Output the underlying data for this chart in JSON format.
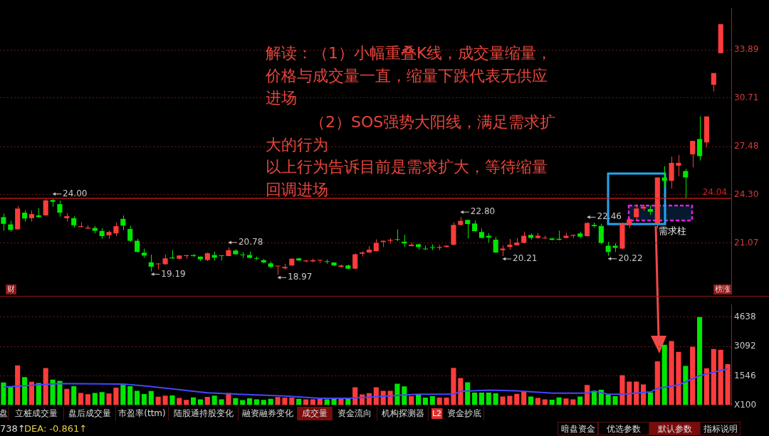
{
  "chart_data": [
    {
      "type": "candlestick",
      "tick_labels": "y",
      "grid": "y",
      "ylim": [
        18.0,
        36.68
      ],
      "yticks": [
        21.07,
        {
          "value": 24.3,
          "label": "24.30"
        },
        27.48,
        30.71,
        33.89
      ],
      "categories": [
        null,
        null,
        null,
        null,
        null,
        null,
        null,
        null,
        null,
        null,
        null,
        null,
        null,
        null,
        null,
        null,
        null,
        null,
        null,
        null,
        null,
        null,
        null,
        null,
        null,
        null,
        null,
        null,
        null,
        null,
        null,
        null,
        null,
        null,
        null,
        null,
        null,
        null,
        null,
        null,
        null,
        null,
        null,
        null,
        null,
        null,
        null,
        null,
        null,
        null,
        null,
        null,
        null,
        null,
        null,
        null,
        null,
        null,
        null,
        null,
        null,
        null,
        null,
        null,
        null,
        null,
        null,
        null,
        null,
        null,
        null,
        null,
        null,
        null,
        null,
        null,
        null,
        null,
        null,
        null,
        null,
        null,
        null,
        null,
        null,
        null,
        null,
        null,
        null,
        null,
        null,
        null,
        null,
        null,
        null,
        null,
        null,
        null,
        null,
        null,
        null,
        null,
        null,
        null
      ],
      "ohlc": [
        [
          22.8,
          23.03,
          21.9,
          22.35
        ],
        [
          22.31,
          22.55,
          21.83,
          21.95
        ],
        [
          21.98,
          23.54,
          21.98,
          23.36
        ],
        [
          23.09,
          23.25,
          22.5,
          22.7
        ],
        [
          22.73,
          23.25,
          22.5,
          23.0
        ],
        [
          22.91,
          23.4,
          22.76,
          22.79
        ],
        [
          22.91,
          23.96,
          22.88,
          23.9
        ],
        [
          23.93,
          24.0,
          23.48,
          23.81
        ],
        [
          23.66,
          23.9,
          22.83,
          23.09
        ],
        [
          22.73,
          23.06,
          22.5,
          22.85
        ],
        [
          22.73,
          22.85,
          22.1,
          22.25
        ],
        [
          22.13,
          22.45,
          22.13,
          22.19
        ],
        [
          22.04,
          22.25,
          22.01,
          22.1
        ],
        [
          22.07,
          22.2,
          21.71,
          21.89
        ],
        [
          21.87,
          22.05,
          21.35,
          21.53
        ],
        [
          21.59,
          21.9,
          21.35,
          21.8
        ],
        [
          21.71,
          22.43,
          21.53,
          22.19
        ],
        [
          22.68,
          22.91,
          21.93,
          22.23
        ],
        [
          22.01,
          22.22,
          21.14,
          21.23
        ],
        [
          21.23,
          21.35,
          20.45,
          20.48
        ],
        [
          20.43,
          20.7,
          20.1,
          20.24
        ],
        [
          19.8,
          20.3,
          19.19,
          19.5
        ],
        [
          19.67,
          19.73,
          19.31,
          19.7
        ],
        [
          19.67,
          20.3,
          19.64,
          20.06
        ],
        [
          20.12,
          20.6,
          20.03,
          20.06
        ],
        [
          20.03,
          20.24,
          19.97,
          20.24
        ],
        [
          20.21,
          20.27,
          20.03,
          20.27
        ],
        [
          20.27,
          20.36,
          20.15,
          20.21
        ],
        [
          20.18,
          20.18,
          19.88,
          20.0
        ],
        [
          19.95,
          20.45,
          19.88,
          20.4
        ],
        [
          20.28,
          20.51,
          19.91,
          20.1
        ],
        [
          20.24,
          20.24,
          19.91,
          20.21
        ],
        [
          20.21,
          20.78,
          20.2,
          20.6
        ],
        [
          20.57,
          20.66,
          20.3,
          20.33
        ],
        [
          20.3,
          20.48,
          20.06,
          20.27
        ],
        [
          20.28,
          20.51,
          20.06,
          20.09
        ],
        [
          20.06,
          20.18,
          19.94,
          20.03
        ],
        [
          19.94,
          20.03,
          19.73,
          19.79
        ],
        [
          19.73,
          19.85,
          19.4,
          19.49
        ],
        [
          19.52,
          19.55,
          18.97,
          19.55
        ],
        [
          19.4,
          19.7,
          19.31,
          19.49
        ],
        [
          19.58,
          20.06,
          19.55,
          20.03
        ],
        [
          20.06,
          20.09,
          19.88,
          19.91
        ],
        [
          19.85,
          19.94,
          19.79,
          19.91
        ],
        [
          19.85,
          20.03,
          19.79,
          19.94
        ],
        [
          19.91,
          19.94,
          19.73,
          19.94
        ],
        [
          19.85,
          19.97,
          19.7,
          19.82
        ],
        [
          19.79,
          19.79,
          19.55,
          19.58
        ],
        [
          19.49,
          19.64,
          19.43,
          19.58
        ],
        [
          19.58,
          19.64,
          19.34,
          19.37
        ],
        [
          19.37,
          20.39,
          19.34,
          20.33
        ],
        [
          20.36,
          20.54,
          20.18,
          20.45
        ],
        [
          20.45,
          20.87,
          20.42,
          20.63
        ],
        [
          20.54,
          21.32,
          20.51,
          21.08
        ],
        [
          21.14,
          21.23,
          20.81,
          21.23
        ],
        [
          21.23,
          21.38,
          21.05,
          21.29
        ],
        [
          21.32,
          21.98,
          21.2,
          21.29
        ],
        [
          21.17,
          21.62,
          20.81,
          21.05
        ],
        [
          20.87,
          21.11,
          20.84,
          20.96
        ],
        [
          20.99,
          21.05,
          20.63,
          20.81
        ],
        [
          20.69,
          20.9,
          20.63,
          20.66
        ],
        [
          20.78,
          20.99,
          20.6,
          20.75
        ],
        [
          20.75,
          20.96,
          20.6,
          20.81
        ],
        [
          20.81,
          20.93,
          20.77,
          20.9
        ],
        [
          20.96,
          22.45,
          20.93,
          22.28
        ],
        [
          22.28,
          22.8,
          22.22,
          22.55
        ],
        [
          22.61,
          22.61,
          21.38,
          22.34
        ],
        [
          22.37,
          22.58,
          21.83,
          21.86
        ],
        [
          21.8,
          22.04,
          21.38,
          21.41
        ],
        [
          21.56,
          21.74,
          21.11,
          21.44
        ],
        [
          21.3,
          21.5,
          20.42,
          20.45
        ],
        [
          20.6,
          20.93,
          20.21,
          20.7
        ],
        [
          20.81,
          21.35,
          20.63,
          20.96
        ],
        [
          20.93,
          21.41,
          20.9,
          21.11
        ],
        [
          21.08,
          21.83,
          21.05,
          21.56
        ],
        [
          21.62,
          21.71,
          21.3,
          21.41
        ],
        [
          21.41,
          21.75,
          21.35,
          21.56
        ],
        [
          21.38,
          21.56,
          21.35,
          21.41
        ],
        [
          21.38,
          21.41,
          21.26,
          21.29
        ],
        [
          21.35,
          21.9,
          21.26,
          21.29
        ],
        [
          21.41,
          21.75,
          21.38,
          21.56
        ],
        [
          21.56,
          21.62,
          21.41,
          21.62
        ],
        [
          21.71,
          21.83,
          21.41,
          21.5
        ],
        [
          21.53,
          22.46,
          21.5,
          22.4
        ],
        [
          22.28,
          22.43,
          22.1,
          22.19
        ],
        [
          22.2,
          22.35,
          21.0,
          21.08
        ],
        [
          20.9,
          21.15,
          20.22,
          20.48
        ],
        [
          20.9,
          21.08,
          20.48,
          20.75
        ],
        [
          20.7,
          22.43,
          20.66,
          22.35
        ],
        [
          22.25,
          22.73,
          22.05,
          22.65
        ],
        [
          22.8,
          23.63,
          22.58,
          23.36
        ],
        [
          23.36,
          23.63,
          23.21,
          23.48
        ],
        [
          23.33,
          23.55,
          22.95,
          23.15
        ],
        [
          22.35,
          25.43,
          22.05,
          25.43
        ],
        [
          25.43,
          26.18,
          24.75,
          25.2
        ],
        [
          25.2,
          26.81,
          24.68,
          26.4
        ],
        [
          26.21,
          26.93,
          25.5,
          26.4
        ],
        [
          25.85,
          26.0,
          24.08,
          25.43
        ],
        [
          26.96,
          27.86,
          26.1,
          27.86
        ],
        [
          27.98,
          29.48,
          26.55,
          26.84
        ],
        [
          27.75,
          29.48,
          27.45,
          29.48
        ],
        [
          31.58,
          32.36,
          31.13,
          32.36
        ],
        [
          33.68,
          35.6,
          33.68,
          35.6
        ],
        null
      ],
      "colors": [
        "#00e600",
        "#00e600",
        "#ff3c3c",
        "#00e600",
        "#ff3c3c",
        "#00e600",
        "#ff3c3c",
        "#00e600",
        "#00e600",
        "#ff3c3c",
        "#00e600",
        "#ff3c3c",
        "#ff3c3c",
        "#00e600",
        "#00e600",
        "#ff3c3c",
        "#ff3c3c",
        "#00e600",
        "#00e600",
        "#00e600",
        "#00e600",
        "#00e600",
        "#ff3c3c",
        "#ff3c3c",
        "#00e600",
        "#ff3c3c",
        "#ff3c3c",
        "#00e600",
        "#00e600",
        "#ff3c3c",
        "#00e600",
        "#00e600",
        "#ff3c3c",
        "#00e600",
        "#00e600",
        "#00e600",
        "#00e600",
        "#00e600",
        "#00e600",
        "#ff3c3c",
        "#ff3c3c",
        "#ff3c3c",
        "#00e600",
        "#ff3c3c",
        "#ff3c3c",
        "#ff3c3c",
        "#00e600",
        "#00e600",
        "#ff3c3c",
        "#00e600",
        "#ff3c3c",
        "#ff3c3c",
        "#ff3c3c",
        "#ff3c3c",
        "#ff3c3c",
        "#ff3c3c",
        "#00e600",
        "#00e600",
        "#ff3c3c",
        "#00e600",
        "#00e600",
        "#00e600",
        "#ff3c3c",
        "#ff3c3c",
        "#ff3c3c",
        "#ff3c3c",
        "#00e600",
        "#00e600",
        "#00e600",
        "#00e600",
        "#00e600",
        "#ff3c3c",
        "#ff3c3c",
        "#ff3c3c",
        "#ff3c3c",
        "#00e600",
        "#ff3c3c",
        "#ff3c3c",
        "#00e600",
        "#00e600",
        "#ff3c3c",
        "#ff3c3c",
        "#00e600",
        "#ff3c3c",
        "#00e600",
        "#00e600",
        "#00e600",
        "#00e600",
        "#ff3c3c",
        "#ff3c3c",
        "#ff3c3c",
        "#ff3c3c",
        "#00e600",
        "#ff3c3c",
        "#00e600",
        "#ff3c3c",
        "#ff3c3c",
        "#00e600",
        "#ff3c3c",
        "#00e600",
        "#ff3c3c",
        "#ff3c3c",
        "#ff3c3c",
        "#ff3c3c"
      ],
      "ref_lines": [
        {
          "axis": "y",
          "value": 24.04,
          "label": "24.04",
          "color": "#d02020"
        }
      ],
      "annotations": [
        "解读：（1）小幅重叠K线，成交量缩量，价格与成交量一直，缩量下跌代表无供应进场",
        "（2）SOS强势大阳线，满足需求扩大的行为",
        "以上行为告诉目前是需求扩大，等待缩量回调进场",
        "需求柱",
        "24.00",
        "19.19",
        "20.78",
        "18.97",
        "22.80",
        "20.21",
        "22.46",
        "20.22",
        "财",
        "榜涨"
      ]
    },
    {
      "type": "bar",
      "tick_labels": "y",
      "grid": "y",
      "marker": "none",
      "ylim": [
        0,
        5300
      ],
      "yticks": [
        {
          "value": 0,
          "label": "X100"
        },
        1546,
        3092,
        4638
      ],
      "categories": [
        null,
        null,
        null,
        null,
        null,
        null,
        null,
        null,
        null,
        null,
        null,
        null,
        null,
        null,
        null,
        null,
        null,
        null,
        null,
        null,
        null,
        null,
        null,
        null,
        null,
        null,
        null,
        null,
        null,
        null,
        null,
        null,
        null,
        null,
        null,
        null,
        null,
        null,
        null,
        null,
        null,
        null,
        null,
        null,
        null,
        null,
        null,
        null,
        null,
        null,
        null,
        null,
        null,
        null,
        null,
        null,
        null,
        null,
        null,
        null,
        null,
        null,
        null,
        null,
        null,
        null,
        null,
        null,
        null,
        null,
        null,
        null,
        null,
        null,
        null,
        null,
        null,
        null,
        null,
        null,
        null,
        null,
        null,
        null,
        null,
        null,
        null,
        null,
        null,
        null,
        null,
        null,
        null,
        null,
        null,
        null,
        null,
        null,
        null,
        null,
        null,
        null,
        null,
        null
      ],
      "series": [
        {
          "type": "bar",
          "colors": [
            "#00e600",
            "#00e600",
            "#ff3c3c",
            "#00e600",
            "#ff3c3c",
            "#00e600",
            "#ff3c3c",
            "#00e600",
            "#00e600",
            "#ff3c3c",
            "#00e600",
            "#ff3c3c",
            "#ff3c3c",
            "#00e600",
            "#00e600",
            "#ff3c3c",
            "#ff3c3c",
            "#00e600",
            "#00e600",
            "#00e600",
            "#00e600",
            "#00e600",
            "#ff3c3c",
            "#ff3c3c",
            "#00e600",
            "#ff3c3c",
            "#ff3c3c",
            "#00e600",
            "#00e600",
            "#ff3c3c",
            "#00e600",
            "#00e600",
            "#ff3c3c",
            "#00e600",
            "#00e600",
            "#00e600",
            "#00e600",
            "#00e600",
            "#00e600",
            "#ff3c3c",
            "#ff3c3c",
            "#ff3c3c",
            "#00e600",
            "#ff3c3c",
            "#ff3c3c",
            "#ff3c3c",
            "#00e600",
            "#00e600",
            "#ff3c3c",
            "#00e600",
            "#ff3c3c",
            "#ff3c3c",
            "#ff3c3c",
            "#ff3c3c",
            "#ff3c3c",
            "#ff3c3c",
            "#00e600",
            "#00e600",
            "#ff3c3c",
            "#00e600",
            "#00e600",
            "#00e600",
            "#ff3c3c",
            "#ff3c3c",
            "#ff3c3c",
            "#ff3c3c",
            "#00e600",
            "#00e600",
            "#00e600",
            "#00e600",
            "#00e600",
            "#ff3c3c",
            "#ff3c3c",
            "#ff3c3c",
            "#ff3c3c",
            "#00e600",
            "#ff3c3c",
            "#ff3c3c",
            "#00e600",
            "#00e600",
            "#ff3c3c",
            "#ff3c3c",
            "#00e600",
            "#ff3c3c",
            "#00e600",
            "#00e600",
            "#00e600",
            "#00e600",
            "#ff3c3c",
            "#ff3c3c",
            "#ff3c3c",
            "#ff3c3c",
            "#00e600",
            "#ff3c3c",
            "#00e600",
            "#ff3c3c",
            "#ff3c3c",
            "#00e600",
            "#ff3c3c",
            "#00e600",
            "#ff3c3c",
            "#ff3c3c",
            "#ff3c3c",
            "#ff3c3c"
          ],
          "values": [
            1200,
            990,
            2100,
            1480,
            1240,
            1170,
            1960,
            1350,
            1280,
            860,
            1000,
            650,
            580,
            650,
            690,
            620,
            930,
            1070,
            1000,
            760,
            590,
            750,
            450,
            510,
            520,
            390,
            280,
            410,
            310,
            440,
            510,
            310,
            650,
            380,
            270,
            370,
            310,
            280,
            340,
            430,
            400,
            400,
            340,
            310,
            310,
            340,
            310,
            340,
            340,
            340,
            950,
            570,
            640,
            950,
            760,
            760,
            1130,
            990,
            480,
            560,
            400,
            480,
            400,
            400,
            1970,
            1430,
            1210,
            670,
            670,
            670,
            630,
            460,
            500,
            600,
            730,
            460,
            390,
            310,
            290,
            410,
            360,
            310,
            460,
            1070,
            760,
            820,
            560,
            480,
            1580,
            1250,
            1250,
            1100,
            680,
            2310,
            3180,
            3380,
            2810,
            2070,
            3080,
            4640,
            1950,
            2960,
            2920,
            2160
          ]
        },
        {
          "type": "line",
          "color": "#4646ff",
          "values": [
            960,
            null,
            null,
            null,
            null,
            null,
            null,
            null,
            1140,
            null,
            null,
            null,
            null,
            null,
            null,
            null,
            null,
            1120,
            null,
            null,
            1020,
            null,
            null,
            null,
            null,
            null,
            780,
            null,
            null,
            660,
            null,
            null,
            null,
            null,
            570,
            null,
            null,
            null,
            null,
            null,
            490,
            null,
            null,
            null,
            null,
            370,
            null,
            null,
            null,
            370,
            null,
            null,
            null,
            450,
            null,
            null,
            null,
            null,
            null,
            580,
            null,
            null,
            null,
            null,
            580,
            730,
            null,
            null,
            null,
            800,
            null,
            null,
            null,
            760,
            null,
            null,
            null,
            null,
            640,
            null,
            null,
            null,
            null,
            640,
            750,
            null,
            580,
            null,
            580,
            null,
            null,
            null,
            700,
            890,
            null,
            null,
            1070,
            null,
            null,
            1560,
            null,
            null,
            null,
            1920
          ]
        }
      ]
    },
    {
      "type": "other",
      "annotations": [
        "盘",
        "立桩成交量",
        "盘后成交量",
        "市盈率(ttm)",
        "陆股通持股变化",
        "融资融券变化",
        "成交量",
        "资金流向",
        "机构探测器",
        "L2",
        "资金抄底",
        "暗盘资金",
        "优选参数",
        "默认参数",
        "指标说明",
        "738↑",
        "DEA: -0.861↑"
      ]
    }
  ]
}
